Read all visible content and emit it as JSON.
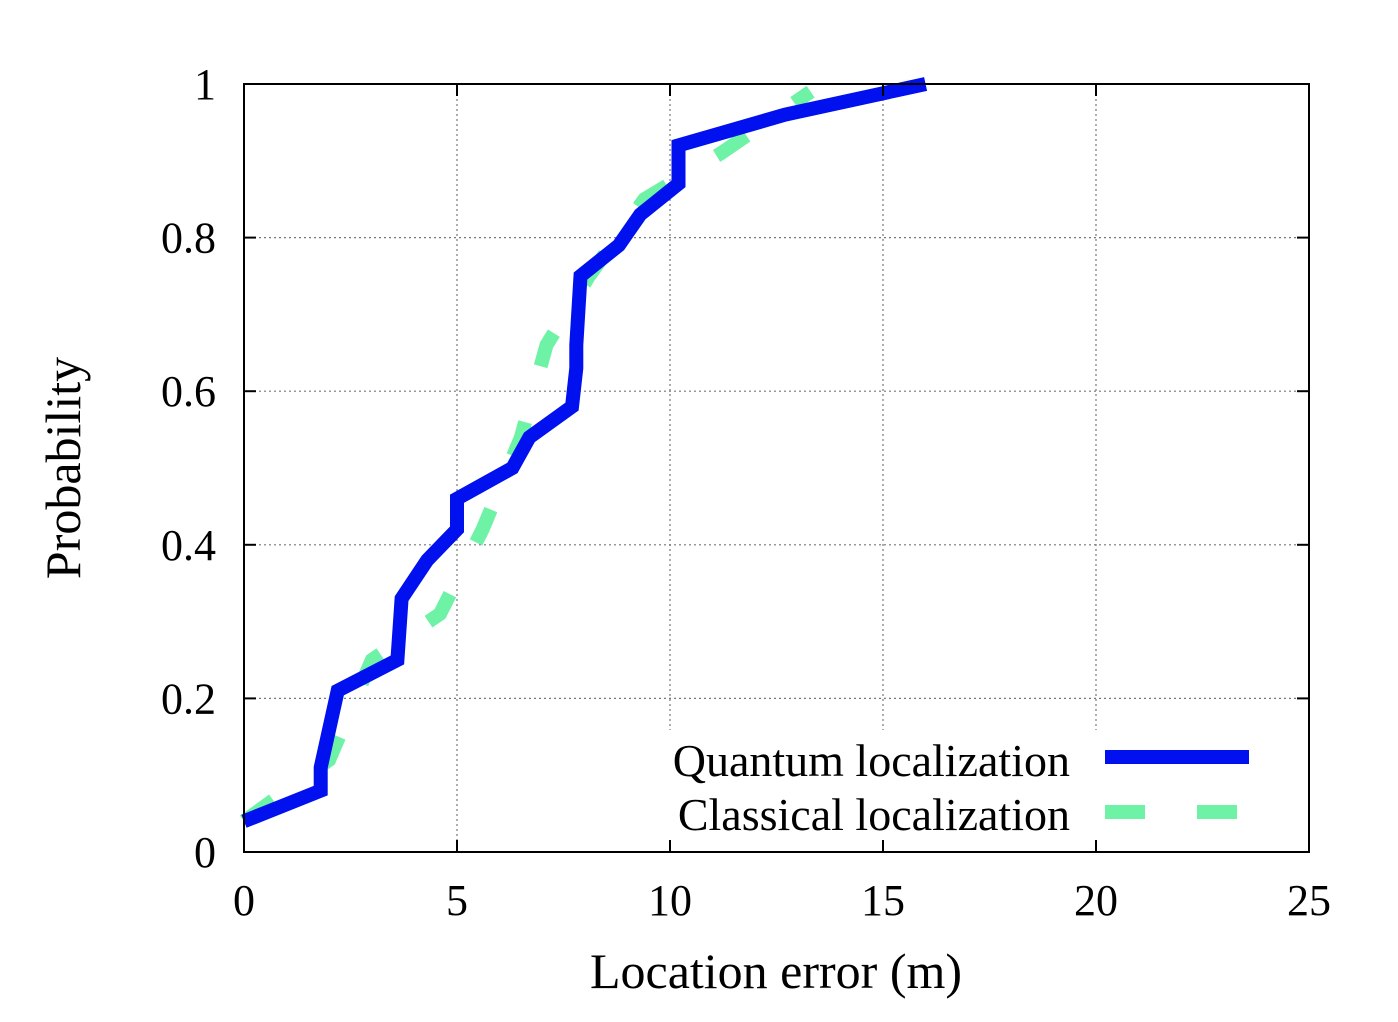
{
  "chart_data": {
    "type": "line",
    "title": "",
    "xlabel": "Location error (m)",
    "ylabel": "Probability",
    "xlim": [
      0,
      25
    ],
    "ylim": [
      0,
      1
    ],
    "xticks": [
      0,
      5,
      10,
      15,
      20,
      25
    ],
    "yticks": [
      0,
      0.2,
      0.4,
      0.6,
      0.8,
      1
    ],
    "xtick_labels": [
      "0",
      "5",
      "10",
      "15",
      "20",
      "25"
    ],
    "ytick_labels": [
      "0",
      "0.2",
      "0.4",
      "0.6",
      "0.8",
      "1"
    ],
    "grid": true,
    "legend_position": "bottom-right",
    "series": [
      {
        "name": "Quantum localization",
        "color": "#0010ee",
        "style": "solid",
        "x": [
          0.0,
          1.8,
          1.8,
          2.2,
          3.6,
          3.7,
          4.3,
          5.0,
          5.0,
          6.3,
          6.7,
          7.7,
          7.8,
          7.8,
          7.9,
          8.8,
          9.3,
          10.2,
          10.2,
          12.7,
          16.0
        ],
        "y": [
          0.04,
          0.08,
          0.11,
          0.21,
          0.25,
          0.33,
          0.38,
          0.42,
          0.46,
          0.5,
          0.54,
          0.58,
          0.63,
          0.66,
          0.75,
          0.79,
          0.83,
          0.87,
          0.92,
          0.96,
          1.0
        ]
      },
      {
        "name": "Classical localization",
        "color": "#6ef2a6",
        "style": "dashed",
        "x": [
          0.0,
          2.0,
          3.0,
          4.6,
          5.6,
          6.5,
          7.1,
          8.1,
          9.4,
          11.2,
          13.3
        ],
        "y": [
          0.04,
          0.12,
          0.25,
          0.31,
          0.42,
          0.54,
          0.66,
          0.75,
          0.85,
          0.91,
          0.99
        ]
      }
    ]
  }
}
